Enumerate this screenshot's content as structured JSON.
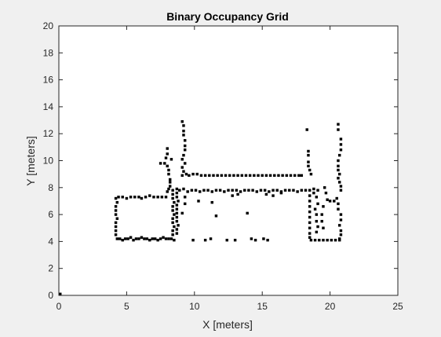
{
  "colors": {
    "figure_bg": "#f0f0f0",
    "axes_bg": "#ffffff",
    "occupied": "#000000",
    "axis": "#262626"
  },
  "chart_data": {
    "type": "heatmap",
    "title": "Binary Occupancy Grid",
    "xlabel": "X [meters]",
    "ylabel": "Y [meters]",
    "xlim": [
      0,
      25
    ],
    "ylim": [
      0,
      20
    ],
    "xticks": [
      0,
      5,
      10,
      15,
      20,
      25
    ],
    "yticks": [
      0,
      2,
      4,
      6,
      8,
      10,
      12,
      14,
      16,
      18,
      20
    ],
    "grid": false,
    "cell_size": 0.2,
    "occupied_points": [
      [
        0.1,
        0.1
      ],
      [
        4.3,
        4.2
      ],
      [
        4.5,
        4.2
      ],
      [
        4.7,
        4.1
      ],
      [
        4.9,
        4.2
      ],
      [
        5.1,
        4.2
      ],
      [
        5.3,
        4.3
      ],
      [
        5.5,
        4.1
      ],
      [
        5.7,
        4.2
      ],
      [
        5.9,
        4.2
      ],
      [
        6.1,
        4.3
      ],
      [
        6.3,
        4.2
      ],
      [
        6.5,
        4.2
      ],
      [
        6.7,
        4.1
      ],
      [
        6.9,
        4.2
      ],
      [
        7.1,
        4.2
      ],
      [
        7.3,
        4.1
      ],
      [
        7.5,
        4.2
      ],
      [
        7.7,
        4.3
      ],
      [
        7.9,
        4.2
      ],
      [
        8.1,
        4.2
      ],
      [
        8.3,
        4.2
      ],
      [
        8.5,
        4.1
      ],
      [
        4.2,
        4.5
      ],
      [
        4.2,
        4.8
      ],
      [
        4.2,
        5.1
      ],
      [
        4.2,
        5.4
      ],
      [
        4.3,
        5.7
      ],
      [
        4.2,
        6.0
      ],
      [
        4.2,
        6.3
      ],
      [
        4.2,
        6.6
      ],
      [
        4.3,
        6.9
      ],
      [
        4.2,
        7.2
      ],
      [
        4.4,
        7.3
      ],
      [
        4.7,
        7.3
      ],
      [
        5.0,
        7.2
      ],
      [
        5.3,
        7.3
      ],
      [
        5.6,
        7.3
      ],
      [
        5.9,
        7.3
      ],
      [
        6.1,
        7.2
      ],
      [
        6.4,
        7.3
      ],
      [
        6.7,
        7.4
      ],
      [
        7.0,
        7.3
      ],
      [
        7.3,
        7.3
      ],
      [
        7.6,
        7.3
      ],
      [
        7.9,
        7.3
      ],
      [
        8.0,
        7.7
      ],
      [
        8.1,
        7.9
      ],
      [
        8.2,
        8.1
      ],
      [
        8.4,
        7.8
      ],
      [
        8.4,
        7.5
      ],
      [
        8.4,
        7.2
      ],
      [
        8.5,
        6.9
      ],
      [
        8.4,
        6.6
      ],
      [
        8.4,
        6.3
      ],
      [
        8.5,
        6.0
      ],
      [
        8.4,
        5.7
      ],
      [
        8.4,
        5.4
      ],
      [
        8.5,
        5.1
      ],
      [
        8.4,
        4.8
      ],
      [
        8.4,
        4.5
      ],
      [
        8.7,
        7.9
      ],
      [
        8.7,
        7.6
      ],
      [
        8.7,
        7.3
      ],
      [
        8.8,
        7.0
      ],
      [
        8.7,
        6.7
      ],
      [
        8.7,
        6.4
      ],
      [
        8.7,
        6.1
      ],
      [
        8.7,
        5.8
      ],
      [
        8.7,
        5.5
      ],
      [
        8.8,
        5.2
      ],
      [
        8.7,
        4.9
      ],
      [
        8.7,
        4.6
      ],
      [
        7.5,
        9.8
      ],
      [
        7.8,
        9.8
      ],
      [
        7.9,
        10.2
      ],
      [
        8.0,
        10.9
      ],
      [
        8.0,
        10.5
      ],
      [
        8.0,
        9.6
      ],
      [
        8.1,
        9.3
      ],
      [
        8.1,
        9.0
      ],
      [
        8.2,
        8.6
      ],
      [
        8.2,
        8.4
      ],
      [
        8.3,
        10.1
      ],
      [
        9.1,
        12.9
      ],
      [
        9.2,
        12.6
      ],
      [
        9.2,
        12.2
      ],
      [
        9.2,
        11.9
      ],
      [
        9.3,
        11.5
      ],
      [
        9.3,
        11.1
      ],
      [
        9.3,
        10.8
      ],
      [
        9.2,
        10.4
      ],
      [
        9.1,
        10.1
      ],
      [
        9.3,
        9.8
      ],
      [
        9.1,
        9.5
      ],
      [
        9.2,
        9.2
      ],
      [
        9.1,
        8.9
      ],
      [
        9.4,
        9.0
      ],
      [
        9.6,
        8.9
      ],
      [
        9.9,
        9.0
      ],
      [
        10.2,
        9.0
      ],
      [
        10.5,
        8.9
      ],
      [
        10.8,
        8.9
      ],
      [
        11.1,
        8.9
      ],
      [
        11.4,
        8.9
      ],
      [
        11.7,
        8.9
      ],
      [
        12.0,
        8.9
      ],
      [
        12.3,
        8.9
      ],
      [
        12.6,
        8.9
      ],
      [
        12.9,
        8.9
      ],
      [
        13.2,
        8.9
      ],
      [
        13.5,
        8.9
      ],
      [
        13.8,
        8.9
      ],
      [
        14.1,
        8.9
      ],
      [
        14.4,
        8.9
      ],
      [
        14.7,
        8.9
      ],
      [
        15.0,
        8.9
      ],
      [
        15.3,
        8.9
      ],
      [
        15.6,
        8.9
      ],
      [
        15.9,
        8.9
      ],
      [
        16.2,
        8.9
      ],
      [
        16.5,
        8.9
      ],
      [
        16.8,
        8.9
      ],
      [
        17.1,
        8.9
      ],
      [
        17.4,
        8.9
      ],
      [
        17.7,
        8.9
      ],
      [
        17.9,
        8.9
      ],
      [
        8.9,
        7.8
      ],
      [
        9.2,
        7.9
      ],
      [
        9.5,
        7.7
      ],
      [
        9.8,
        7.8
      ],
      [
        10.1,
        7.8
      ],
      [
        10.4,
        7.7
      ],
      [
        10.7,
        7.8
      ],
      [
        11.0,
        7.8
      ],
      [
        11.3,
        7.7
      ],
      [
        11.6,
        7.8
      ],
      [
        11.9,
        7.8
      ],
      [
        12.2,
        7.7
      ],
      [
        12.5,
        7.8
      ],
      [
        12.8,
        7.8
      ],
      [
        13.1,
        7.8
      ],
      [
        13.4,
        7.7
      ],
      [
        13.7,
        7.8
      ],
      [
        14.0,
        7.8
      ],
      [
        14.3,
        7.8
      ],
      [
        14.6,
        7.7
      ],
      [
        14.9,
        7.8
      ],
      [
        15.2,
        7.8
      ],
      [
        15.5,
        7.7
      ],
      [
        15.8,
        7.8
      ],
      [
        16.1,
        7.8
      ],
      [
        16.4,
        7.7
      ],
      [
        16.7,
        7.8
      ],
      [
        17.0,
        7.8
      ],
      [
        17.3,
        7.8
      ],
      [
        17.6,
        7.7
      ],
      [
        17.9,
        7.8
      ],
      [
        18.2,
        7.8
      ],
      [
        18.5,
        7.8
      ],
      [
        18.8,
        7.9
      ],
      [
        19.1,
        7.8
      ],
      [
        9.3,
        7.3
      ],
      [
        9.3,
        6.8
      ],
      [
        9.1,
        6.1
      ],
      [
        10.3,
        7.0
      ],
      [
        11.3,
        6.9
      ],
      [
        11.6,
        5.9
      ],
      [
        12.8,
        7.4
      ],
      [
        13.2,
        7.5
      ],
      [
        13.9,
        6.1
      ],
      [
        15.3,
        7.5
      ],
      [
        15.8,
        7.4
      ],
      [
        16.4,
        7.6
      ],
      [
        9.9,
        4.1
      ],
      [
        10.8,
        4.1
      ],
      [
        11.2,
        4.2
      ],
      [
        12.4,
        4.1
      ],
      [
        13.0,
        4.1
      ],
      [
        14.2,
        4.2
      ],
      [
        14.5,
        4.1
      ],
      [
        15.1,
        4.2
      ],
      [
        15.4,
        4.1
      ],
      [
        18.3,
        12.3
      ],
      [
        18.4,
        10.7
      ],
      [
        18.4,
        10.4
      ],
      [
        18.4,
        9.9
      ],
      [
        18.4,
        9.6
      ],
      [
        18.5,
        9.3
      ],
      [
        18.6,
        9.0
      ],
      [
        18.5,
        7.4
      ],
      [
        18.5,
        7.0
      ],
      [
        18.5,
        6.6
      ],
      [
        18.5,
        6.2
      ],
      [
        18.5,
        5.8
      ],
      [
        18.5,
        5.4
      ],
      [
        18.5,
        5.0
      ],
      [
        18.5,
        4.6
      ],
      [
        18.5,
        4.3
      ],
      [
        18.6,
        4.1
      ],
      [
        18.9,
        4.1
      ],
      [
        19.2,
        4.1
      ],
      [
        19.5,
        4.1
      ],
      [
        19.8,
        4.1
      ],
      [
        20.1,
        4.1
      ],
      [
        20.4,
        4.1
      ],
      [
        20.7,
        4.1
      ],
      [
        18.8,
        7.6
      ],
      [
        19.0,
        7.3
      ],
      [
        19.1,
        6.8
      ],
      [
        18.9,
        6.4
      ],
      [
        19.0,
        6.0
      ],
      [
        19.0,
        5.5
      ],
      [
        19.1,
        5.1
      ],
      [
        19.0,
        4.7
      ],
      [
        19.6,
        8.0
      ],
      [
        19.7,
        7.6
      ],
      [
        19.8,
        7.1
      ],
      [
        20.0,
        7.0
      ],
      [
        20.3,
        7.0
      ],
      [
        19.5,
        6.6
      ],
      [
        19.4,
        6.0
      ],
      [
        19.4,
        5.5
      ],
      [
        19.5,
        5.0
      ],
      [
        20.6,
        12.7
      ],
      [
        20.6,
        12.3
      ],
      [
        20.8,
        11.6
      ],
      [
        20.8,
        11.2
      ],
      [
        20.8,
        10.8
      ],
      [
        20.7,
        10.4
      ],
      [
        20.6,
        10.0
      ],
      [
        20.6,
        9.6
      ],
      [
        20.6,
        9.3
      ],
      [
        20.7,
        9.0
      ],
      [
        20.6,
        8.7
      ],
      [
        20.7,
        8.4
      ],
      [
        20.8,
        8.1
      ],
      [
        20.8,
        7.8
      ],
      [
        20.5,
        7.2
      ],
      [
        20.6,
        6.8
      ],
      [
        20.6,
        6.4
      ],
      [
        20.8,
        6.0
      ],
      [
        20.8,
        5.6
      ],
      [
        20.7,
        5.2
      ],
      [
        20.8,
        4.8
      ],
      [
        20.8,
        4.5
      ],
      [
        20.7,
        4.2
      ]
    ]
  }
}
